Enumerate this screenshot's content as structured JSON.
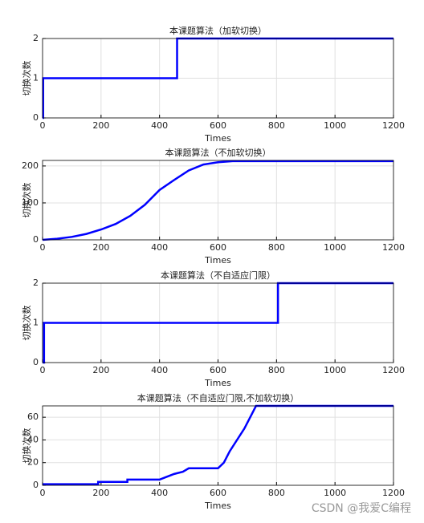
{
  "chart_data": [
    {
      "type": "line",
      "title": "本课题算法（加软切换）",
      "xlabel": "Times",
      "ylabel": "切换次数",
      "xlim": [
        0,
        1200
      ],
      "xticks": [
        0,
        200,
        400,
        600,
        800,
        1000,
        1200
      ],
      "ylim": [
        0,
        2
      ],
      "yticks": [
        0,
        1,
        2
      ],
      "grid": true,
      "series": [
        {
          "color": "#0000ff",
          "x": [
            0,
            2,
            2,
            460,
            460,
            1200
          ],
          "values": [
            0,
            0,
            1,
            1,
            2,
            2
          ]
        }
      ]
    },
    {
      "type": "line",
      "title": "本课题算法（不加软切换）",
      "xlabel": "Times",
      "ylabel": "切换次数",
      "xlim": [
        0,
        1200
      ],
      "xticks": [
        0,
        200,
        400,
        600,
        800,
        1000,
        1200
      ],
      "ylim": [
        0,
        215
      ],
      "yticks": [
        0,
        100,
        200
      ],
      "grid": true,
      "series": [
        {
          "color": "#0000ff",
          "x": [
            0,
            50,
            100,
            150,
            200,
            250,
            300,
            350,
            400,
            450,
            500,
            550,
            600,
            650,
            1200
          ],
          "values": [
            0,
            3,
            8,
            16,
            28,
            43,
            65,
            95,
            135,
            162,
            188,
            204,
            210,
            213,
            213
          ]
        }
      ]
    },
    {
      "type": "line",
      "title": "本课题算法（不自适应门限）",
      "xlabel": "Times",
      "ylabel": "切换次数",
      "xlim": [
        0,
        1200
      ],
      "xticks": [
        0,
        200,
        400,
        600,
        800,
        1000,
        1200
      ],
      "ylim": [
        0,
        2
      ],
      "yticks": [
        0,
        1,
        2
      ],
      "grid": true,
      "series": [
        {
          "color": "#0000ff",
          "x": [
            0,
            5,
            5,
            805,
            805,
            1200
          ],
          "values": [
            0,
            0,
            1,
            1,
            2,
            2
          ]
        }
      ]
    },
    {
      "type": "line",
      "title": "本课题算法（不自适应门限,不加软切换）",
      "xlabel": "Times",
      "ylabel": "切换次数",
      "xlim": [
        0,
        1200
      ],
      "xticks": [
        0,
        200,
        400,
        600,
        800,
        1000,
        1200
      ],
      "ylim": [
        0,
        70
      ],
      "yticks": [
        0,
        20,
        40,
        60
      ],
      "grid": true,
      "series": [
        {
          "color": "#0000ff",
          "x": [
            0,
            190,
            190,
            290,
            290,
            400,
            420,
            450,
            480,
            500,
            600,
            620,
            640,
            660,
            690,
            710,
            730,
            1200
          ],
          "values": [
            1,
            1,
            3,
            3,
            5,
            5,
            7,
            10,
            12,
            15,
            15,
            20,
            30,
            38,
            50,
            60,
            70,
            70
          ]
        }
      ]
    }
  ],
  "watermark": "CSDN @我爱C编程"
}
